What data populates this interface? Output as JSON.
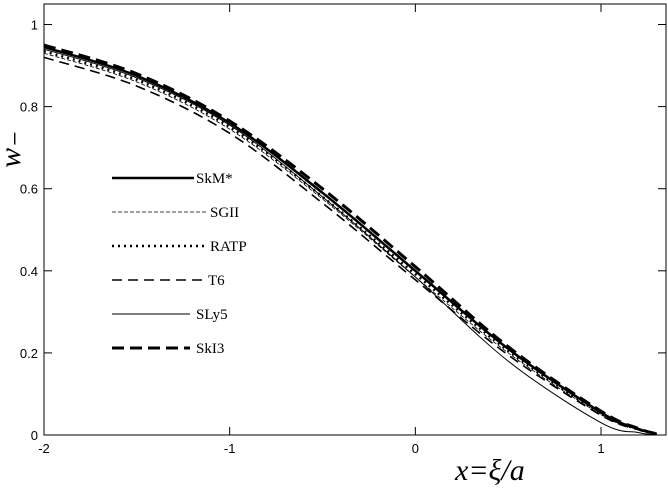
{
  "chart_data": {
    "type": "line",
    "xlabel": "x=ξ/a",
    "ylabel": "w₋",
    "xlim": [
      -2,
      1.35
    ],
    "ylim": [
      0,
      1.05
    ],
    "xticks": [
      -2,
      -1,
      0,
      1
    ],
    "yticks": [
      0,
      0.2,
      0.4,
      0.6,
      0.8,
      1
    ],
    "xtick_labels": [
      "-2",
      "-1",
      "0",
      "1"
    ],
    "ytick_labels": [
      "0",
      "0.2",
      "0.4",
      "0.6",
      "0.8",
      "1"
    ],
    "grid": false,
    "legend_position": "left",
    "x": [
      -2,
      -1.5,
      -1,
      -0.5,
      0,
      0.5,
      1,
      1.2,
      1.3
    ],
    "series": [
      {
        "name": "SkM*",
        "style": "solid-thick",
        "values": [
          0.945,
          0.875,
          0.76,
          0.59,
          0.4,
          0.21,
          0.055,
          0.015,
          0.003
        ]
      },
      {
        "name": "SGII",
        "style": "dashed-thin",
        "values": [
          0.93,
          0.86,
          0.745,
          0.575,
          0.385,
          0.2,
          0.05,
          0.013,
          0.002
        ]
      },
      {
        "name": "RATP",
        "style": "dotted",
        "values": [
          0.935,
          0.865,
          0.75,
          0.58,
          0.392,
          0.205,
          0.052,
          0.014,
          0.003
        ]
      },
      {
        "name": "T6",
        "style": "dashed",
        "values": [
          0.92,
          0.85,
          0.735,
          0.565,
          0.378,
          0.195,
          0.048,
          0.013,
          0.002
        ]
      },
      {
        "name": "SLy5",
        "style": "solid-thin",
        "values": [
          0.94,
          0.87,
          0.755,
          0.58,
          0.385,
          0.18,
          0.03,
          0.006,
          0.0
        ]
      },
      {
        "name": "SkI3",
        "style": "dashed-thick",
        "values": [
          0.95,
          0.88,
          0.765,
          0.6,
          0.41,
          0.215,
          0.058,
          0.016,
          0.003
        ]
      }
    ]
  }
}
